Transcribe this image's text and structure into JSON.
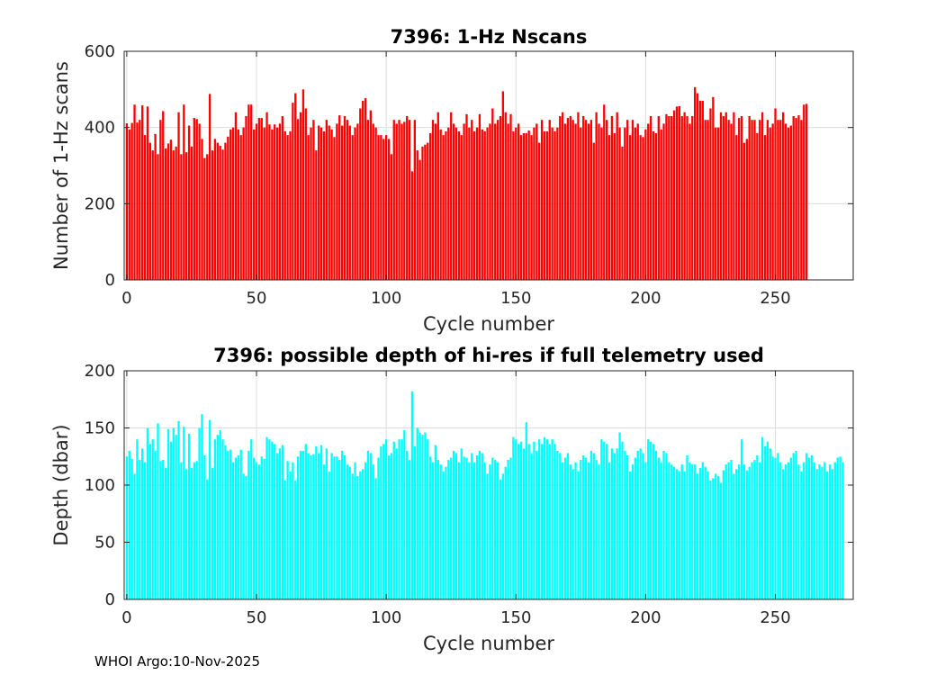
{
  "footer": "WHOI Argo:10-Nov-2025",
  "chart_data": [
    {
      "type": "bar",
      "title": "7396: 1-Hz Nscans",
      "xlabel": "Cycle number",
      "ylabel": "Number of 1-Hz scans",
      "xlim": [
        -1,
        280
      ],
      "ylim": [
        0,
        600
      ],
      "xticks": [
        0,
        50,
        100,
        150,
        200,
        250
      ],
      "yticks": [
        0,
        200,
        400,
        600
      ],
      "grid": true,
      "color": "#ff0000",
      "x_start": 0,
      "values": [
        411,
        395,
        412,
        460,
        413,
        420,
        458,
        380,
        455,
        360,
        340,
        383,
        330,
        420,
        443,
        345,
        358,
        368,
        340,
        350,
        440,
        330,
        460,
        335,
        405,
        350,
        425,
        422,
        410,
        370,
        320,
        330,
        488,
        340,
        370,
        360,
        352,
        342,
        360,
        376,
        395,
        400,
        440,
        395,
        380,
        400,
        430,
        460,
        460,
        395,
        410,
        425,
        425,
        400,
        440,
        408,
        395,
        408,
        400,
        410,
        430,
        390,
        380,
        390,
        465,
        490,
        422,
        440,
        500,
        450,
        380,
        400,
        420,
        340,
        405,
        400,
        390,
        420,
        405,
        395,
        375,
        410,
        432,
        405,
        430,
        420,
        405,
        380,
        400,
        410,
        450,
        470,
        477,
        420,
        445,
        410,
        400,
        380,
        380,
        370,
        380,
        370,
        330,
        420,
        410,
        420,
        410,
        415,
        430,
        420,
        285,
        420,
        340,
        315,
        350,
        355,
        360,
        385,
        420,
        410,
        440,
        395,
        380,
        390,
        400,
        440,
        410,
        400,
        390,
        380,
        410,
        435,
        400,
        420,
        390,
        400,
        435,
        395,
        390,
        400,
        410,
        450,
        410,
        420,
        430,
        495,
        440,
        410,
        435,
        390,
        400,
        410,
        380,
        385,
        385,
        392,
        380,
        400,
        410,
        360,
        420,
        390,
        390,
        420,
        400,
        390,
        400,
        430,
        440,
        410,
        425,
        430,
        420,
        410,
        440,
        400,
        430,
        420,
        410,
        420,
        360,
        440,
        410,
        400,
        460,
        420,
        380,
        430,
        385,
        440,
        400,
        350,
        400,
        420,
        380,
        420,
        400,
        410,
        380,
        375,
        395,
        410,
        430,
        390,
        385,
        430,
        395,
        410,
        435,
        430,
        430,
        445,
        455,
        456,
        430,
        440,
        430,
        410,
        430,
        506,
        490,
        470,
        470,
        420,
        420,
        450,
        480,
        400,
        400,
        440,
        430,
        440,
        420,
        410,
        440,
        380,
        425,
        430,
        360,
        370,
        430,
        420,
        420,
        385,
        420,
        440,
        380,
        420,
        400,
        410,
        450,
        420,
        420,
        440,
        410,
        400,
        405,
        430,
        425,
        432,
        420,
        460,
        462
      ]
    },
    {
      "type": "bar",
      "title": "7396: possible depth of hi-res if full telemetry used",
      "xlabel": "Cycle number",
      "ylabel": "Depth (dbar)",
      "xlim": [
        -1,
        280
      ],
      "ylim": [
        0,
        200
      ],
      "xticks": [
        0,
        50,
        100,
        150,
        200,
        250
      ],
      "yticks": [
        0,
        50,
        100,
        150,
        200
      ],
      "grid": true,
      "color": "#00ffff",
      "x_start": 0,
      "values": [
        125,
        130,
        123,
        110,
        140,
        122,
        132,
        120,
        150,
        136,
        140,
        130,
        154,
        121,
        122,
        115,
        149,
        138,
        150,
        144,
        156,
        120,
        151,
        114,
        145,
        115,
        120,
        121,
        150,
        162,
        126,
        105,
        157,
        115,
        140,
        144,
        148,
        140,
        135,
        130,
        131,
        120,
        124,
        126,
        131,
        110,
        108,
        130,
        140,
        124,
        120,
        118,
        125,
        123,
        142,
        140,
        138,
        136,
        128,
        132,
        135,
        104,
        121,
        112,
        120,
        104,
        125,
        130,
        130,
        136,
        128,
        126,
        127,
        134,
        128,
        135,
        118,
        132,
        112,
        128,
        125,
        125,
        122,
        130,
        126,
        118,
        116,
        110,
        120,
        108,
        112,
        114,
        120,
        130,
        128,
        118,
        106,
        124,
        134,
        136,
        140,
        126,
        128,
        138,
        132,
        140,
        140,
        148,
        130,
        122,
        182,
        134,
        150,
        146,
        144,
        146,
        140,
        125,
        120,
        135,
        122,
        118,
        112,
        116,
        122,
        124,
        130,
        128,
        120,
        132,
        125,
        124,
        120,
        128,
        120,
        126,
        130,
        128,
        120,
        110,
        118,
        124,
        122,
        120,
        105,
        110,
        116,
        122,
        124,
        142,
        140,
        136,
        138,
        132,
        155,
        136,
        128,
        138,
        130,
        140,
        136,
        142,
        140,
        136,
        140,
        136,
        130,
        128,
        120,
        124,
        128,
        118,
        114,
        120,
        112,
        122,
        126,
        124,
        120,
        130,
        128,
        122,
        118,
        140,
        138,
        136,
        120,
        132,
        128,
        132,
        146,
        138,
        130,
        126,
        112,
        118,
        124,
        130,
        132,
        128,
        120,
        140,
        138,
        136,
        130,
        124,
        120,
        130,
        128,
        120,
        118,
        116,
        114,
        112,
        118,
        112,
        126,
        120,
        118,
        118,
        110,
        115,
        120,
        116,
        112,
        104,
        106,
        110,
        108,
        102,
        113,
        118,
        120,
        122,
        110,
        114,
        118,
        140,
        118,
        113,
        116,
        120,
        122,
        126,
        120,
        142,
        134,
        138,
        132,
        125,
        124,
        128,
        120,
        114,
        118,
        120,
        124,
        128,
        130,
        118,
        112,
        120,
        128,
        124,
        126,
        120,
        114,
        118,
        116,
        120,
        112,
        118,
        114,
        120,
        124,
        125,
        120
      ]
    }
  ]
}
